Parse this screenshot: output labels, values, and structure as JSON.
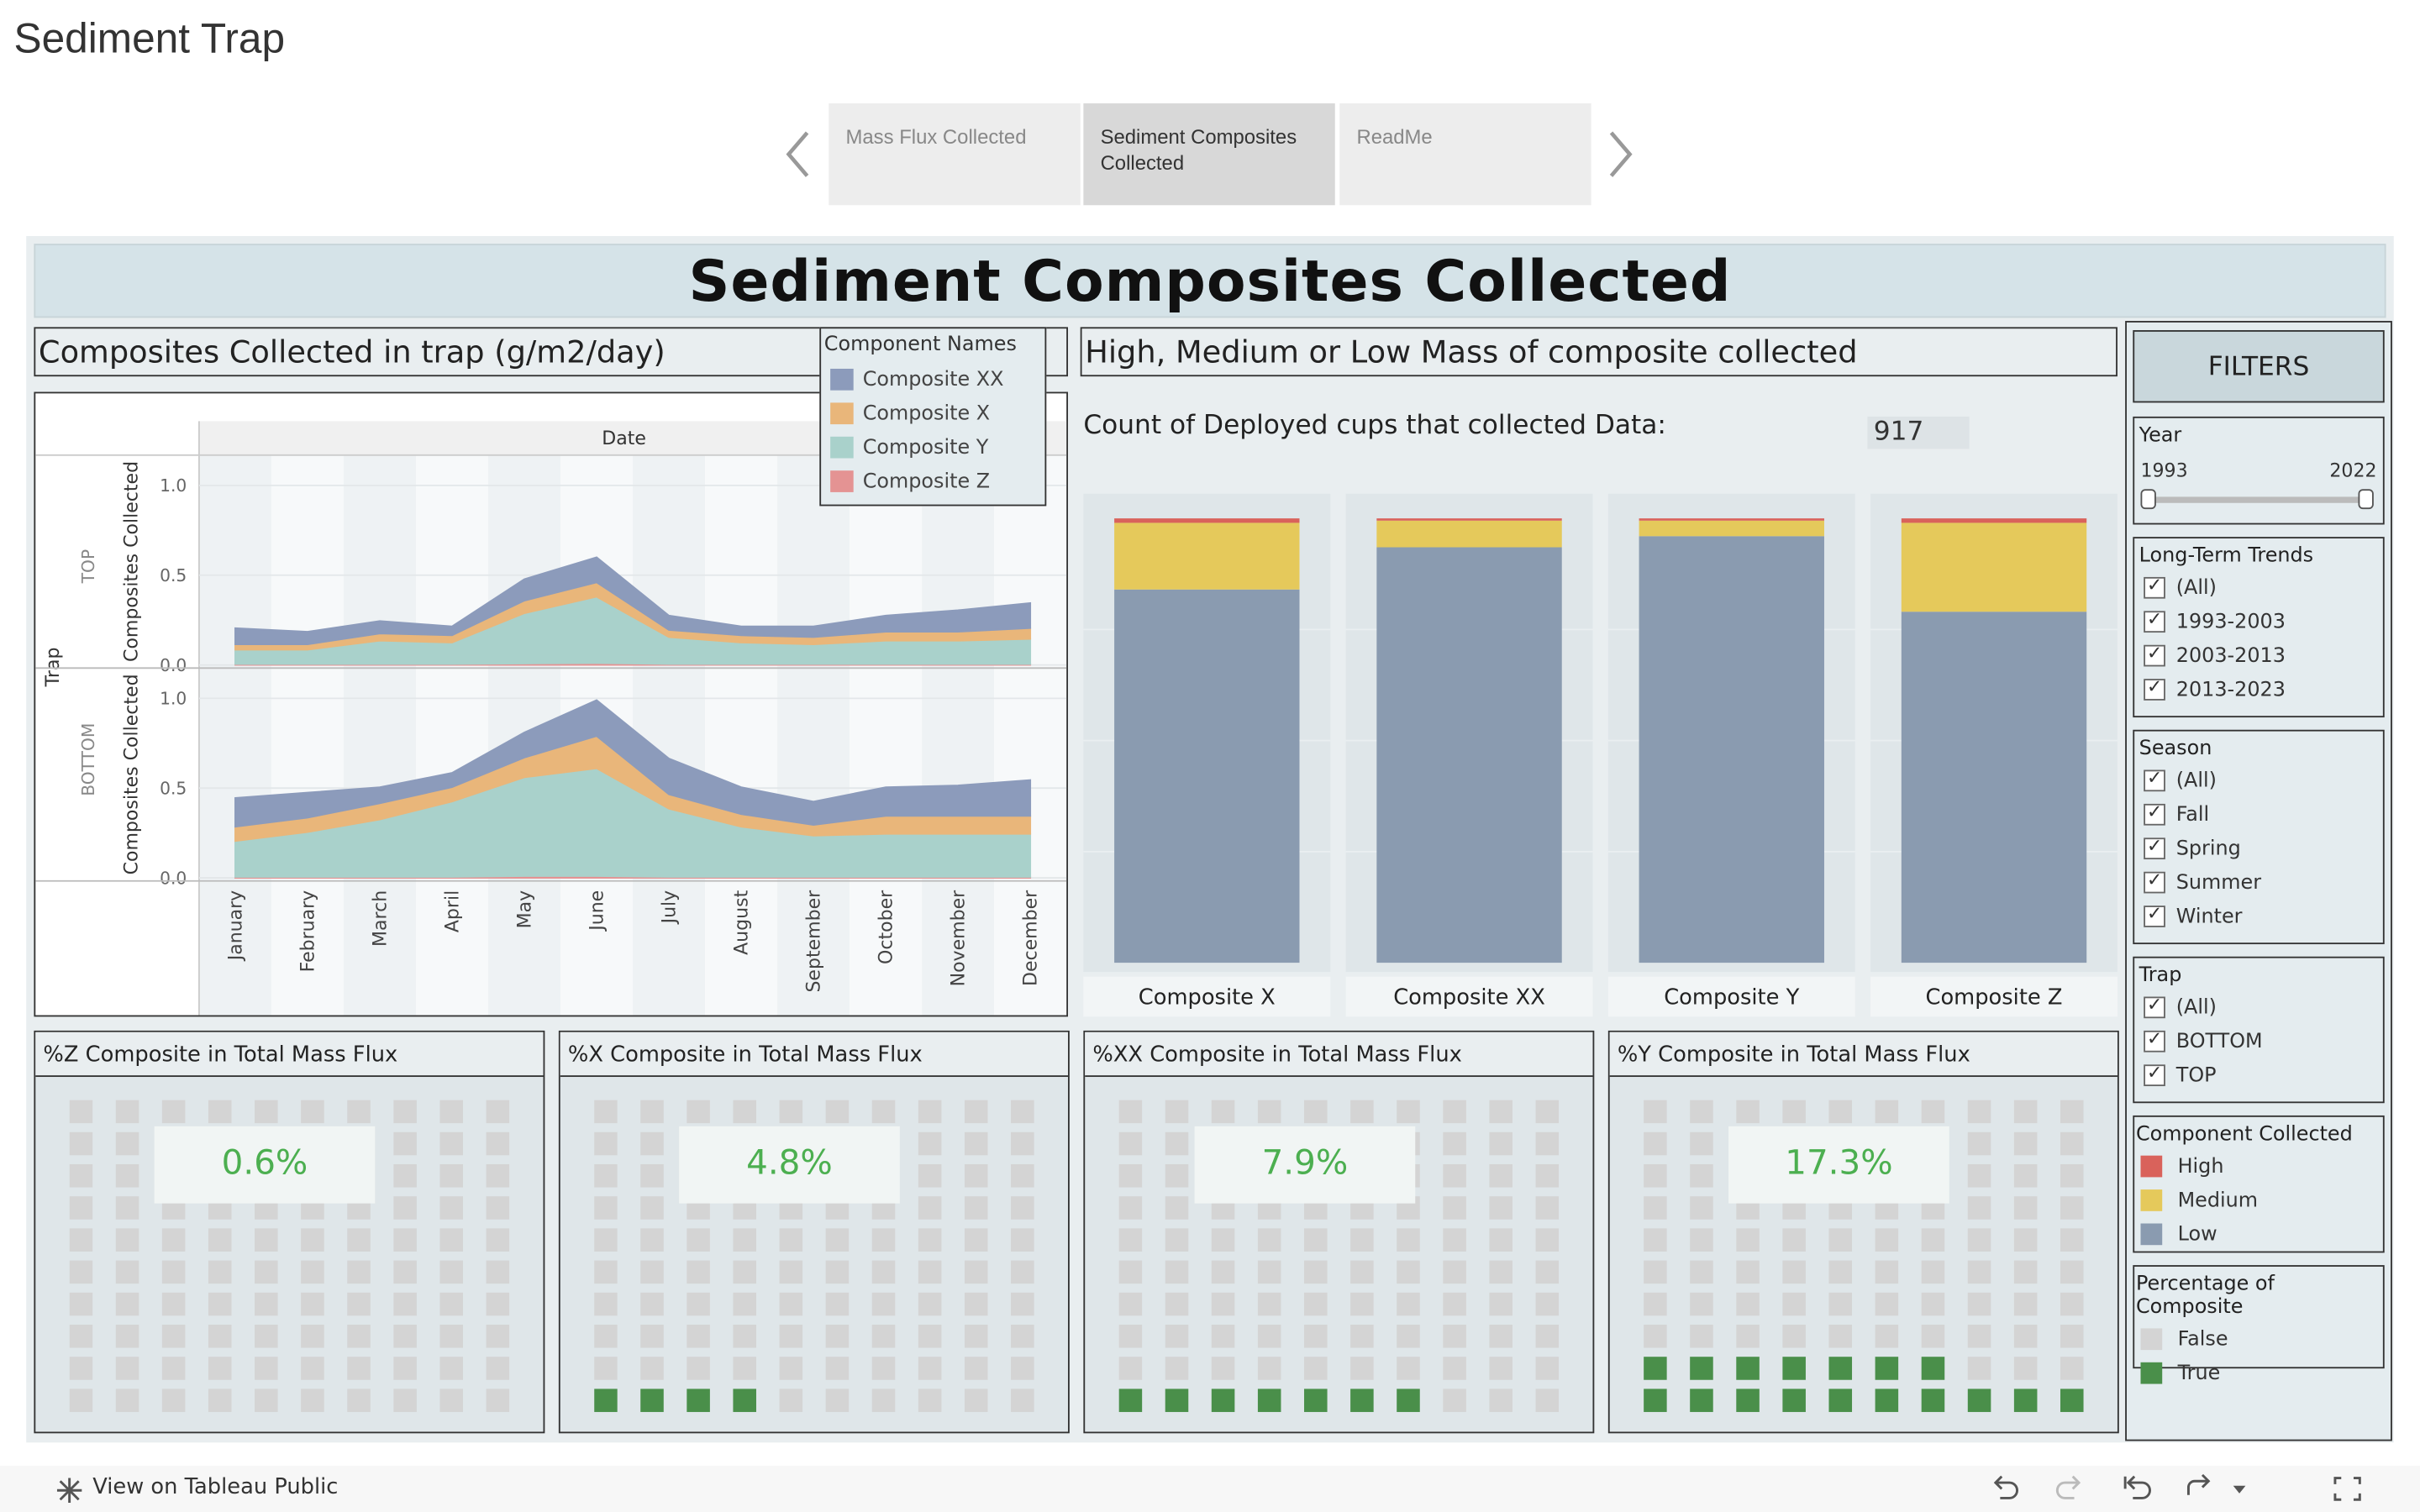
{
  "app": {
    "title": "Sediment Trap"
  },
  "tabs": [
    {
      "label": "Mass Flux Collected",
      "active": false
    },
    {
      "label": "Sediment Composites Collected",
      "active": true
    },
    {
      "label": "ReadMe",
      "active": false
    }
  ],
  "dashboard_title": "Sediment Composites Collected",
  "area_panel": {
    "title": "Composites Collected in trap (g/m2/day)",
    "col_header": "Date",
    "row_header": "Trap",
    "y_axis_title": "Composites Collected",
    "traps": [
      "TOP",
      "BOTTOM"
    ],
    "y_ticks": [
      "1.0",
      "0.5",
      "0.0"
    ]
  },
  "legend": {
    "title": "Component Names",
    "items": [
      {
        "label": "Composite XX",
        "color": "#8c9bbb"
      },
      {
        "label": "Composite X",
        "color": "#e9b67a"
      },
      {
        "label": "Composite Y",
        "color": "#a9d1cb"
      },
      {
        "label": "Composite Z",
        "color": "#e49393"
      }
    ]
  },
  "chart_data": [
    {
      "type": "area",
      "title": "Composites Collected in trap (g/m2/day)",
      "xlabel": "Date",
      "ylabel": "Composites Collected",
      "categories": [
        "January",
        "February",
        "March",
        "April",
        "May",
        "June",
        "July",
        "August",
        "September",
        "October",
        "November",
        "December"
      ],
      "ylim": [
        0,
        1.1
      ],
      "stacked": true,
      "facets": [
        {
          "name": "TOP",
          "series": [
            {
              "name": "Composite Z",
              "values": [
                0.005,
                0.005,
                0.005,
                0.005,
                0.008,
                0.01,
                0.005,
                0.005,
                0.005,
                0.005,
                0.005,
                0.005
              ]
            },
            {
              "name": "Composite Y",
              "values": [
                0.08,
                0.08,
                0.13,
                0.12,
                0.28,
                0.37,
                0.15,
                0.12,
                0.11,
                0.13,
                0.13,
                0.14
              ]
            },
            {
              "name": "Composite X",
              "values": [
                0.03,
                0.03,
                0.04,
                0.04,
                0.07,
                0.08,
                0.04,
                0.04,
                0.04,
                0.05,
                0.05,
                0.06
              ]
            },
            {
              "name": "Composite XX",
              "values": [
                0.09,
                0.07,
                0.07,
                0.05,
                0.12,
                0.14,
                0.08,
                0.05,
                0.06,
                0.09,
                0.12,
                0.14
              ]
            }
          ]
        },
        {
          "name": "BOTTOM",
          "series": [
            {
              "name": "Composite Z",
              "values": [
                0.005,
                0.005,
                0.005,
                0.005,
                0.01,
                0.01,
                0.005,
                0.005,
                0.005,
                0.005,
                0.005,
                0.005
              ]
            },
            {
              "name": "Composite Y",
              "values": [
                0.2,
                0.25,
                0.32,
                0.42,
                0.55,
                0.6,
                0.38,
                0.28,
                0.23,
                0.24,
                0.24,
                0.24
              ]
            },
            {
              "name": "Composite X",
              "values": [
                0.08,
                0.08,
                0.09,
                0.08,
                0.11,
                0.18,
                0.08,
                0.07,
                0.06,
                0.1,
                0.1,
                0.1
              ]
            },
            {
              "name": "Composite XX",
              "values": [
                0.16,
                0.14,
                0.09,
                0.08,
                0.14,
                0.2,
                0.2,
                0.15,
                0.13,
                0.16,
                0.17,
                0.2
              ]
            }
          ]
        }
      ]
    },
    {
      "type": "bar",
      "title": "High, Medium or Low Mass of composite collected",
      "categories": [
        "Composite X",
        "Composite XX",
        "Composite Y",
        "Composite Z"
      ],
      "stacked": true,
      "series": [
        {
          "name": "Low",
          "color": "#8a9bb0",
          "values": [
            84.0,
            93.5,
            96.0,
            79.0
          ]
        },
        {
          "name": "Medium",
          "color": "#e5c95b",
          "values": [
            15.0,
            6.0,
            3.5,
            20.0
          ]
        },
        {
          "name": "High",
          "color": "#d9625b",
          "values": [
            1.0,
            0.5,
            0.5,
            1.0
          ]
        }
      ],
      "ylim": [
        0,
        100
      ]
    }
  ],
  "bar_panel": {
    "title": "High, Medium or Low Mass of composite collected",
    "count_label": "Count of Deployed cups that collected Data:",
    "count_value": "917"
  },
  "waffles": [
    {
      "title": "%Z Composite in Total Mass Flux",
      "pct": "0.6%",
      "true_count": 0
    },
    {
      "title": "%X Composite in Total Mass Flux",
      "pct": "4.8%",
      "true_count": 4
    },
    {
      "title": "%XX Composite in Total Mass Flux",
      "pct": "7.9%",
      "true_count": 7
    },
    {
      "title": "%Y Composite in Total Mass Flux",
      "pct": "17.3%",
      "true_count": 17
    }
  ],
  "waffle_colors": {
    "false": "#d4d4d4",
    "true": "#4a8f4a"
  },
  "filters": {
    "header": "FILTERS",
    "year": {
      "title": "Year",
      "min": "1993",
      "max": "2022"
    },
    "long_term": {
      "title": "Long-Term Trends",
      "items": [
        "(All)",
        "1993-2003",
        "2003-2013",
        "2013-2023"
      ]
    },
    "season": {
      "title": "Season",
      "items": [
        "(All)",
        "Fall",
        "Spring",
        "Summer",
        "Winter"
      ]
    },
    "trap": {
      "title": "Trap",
      "items": [
        "(All)",
        "BOTTOM",
        "TOP"
      ]
    },
    "component": {
      "title": "Component Collected",
      "items": [
        {
          "label": "High",
          "color": "#d9625b"
        },
        {
          "label": "Medium",
          "color": "#e5c95b"
        },
        {
          "label": "Low",
          "color": "#8a9bb0"
        }
      ]
    },
    "percentage": {
      "title": "Percentage of Composite",
      "items": [
        {
          "label": "False",
          "color": "#d4d4d4"
        },
        {
          "label": "True",
          "color": "#4a8f4a"
        }
      ]
    }
  },
  "footer": {
    "tableau_link": "View on Tableau Public"
  }
}
